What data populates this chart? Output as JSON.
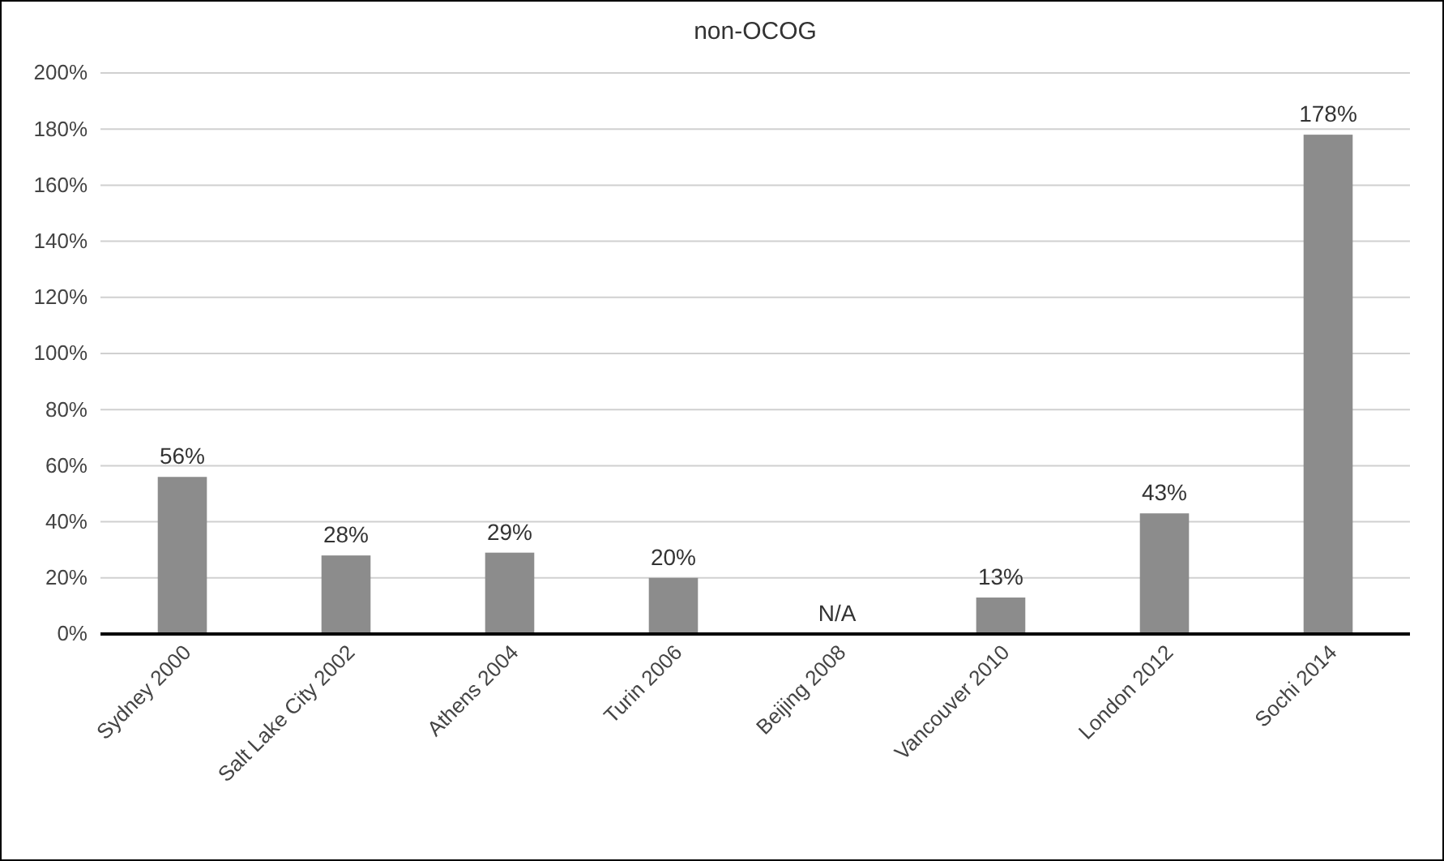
{
  "chart_data": {
    "type": "bar",
    "title": "non-OCOG",
    "categories": [
      "Sydney 2000",
      "Salt Lake City 2002",
      "Athens 2004",
      "Turin 2006",
      "Beijing 2008",
      "Vancouver 2010",
      "London 2012",
      "Sochi 2014"
    ],
    "values": [
      56,
      28,
      29,
      20,
      null,
      13,
      43,
      178
    ],
    "value_labels": [
      "56%",
      "28%",
      "29%",
      "20%",
      "N/A",
      "13%",
      "43%",
      "178%"
    ],
    "color": "#8c8c8c",
    "ylim": [
      0,
      200
    ],
    "yticks": [
      {
        "value": 0,
        "label": "0%"
      },
      {
        "value": 20,
        "label": "20%"
      },
      {
        "value": 40,
        "label": "40%"
      },
      {
        "value": 60,
        "label": "60%"
      },
      {
        "value": 80,
        "label": "80%"
      },
      {
        "value": 100,
        "label": "100%"
      },
      {
        "value": 120,
        "label": "120%"
      },
      {
        "value": 140,
        "label": "140%"
      },
      {
        "value": 160,
        "label": "160%"
      },
      {
        "value": 180,
        "label": "180%"
      },
      {
        "value": 200,
        "label": "200%"
      }
    ],
    "grid": "y"
  }
}
